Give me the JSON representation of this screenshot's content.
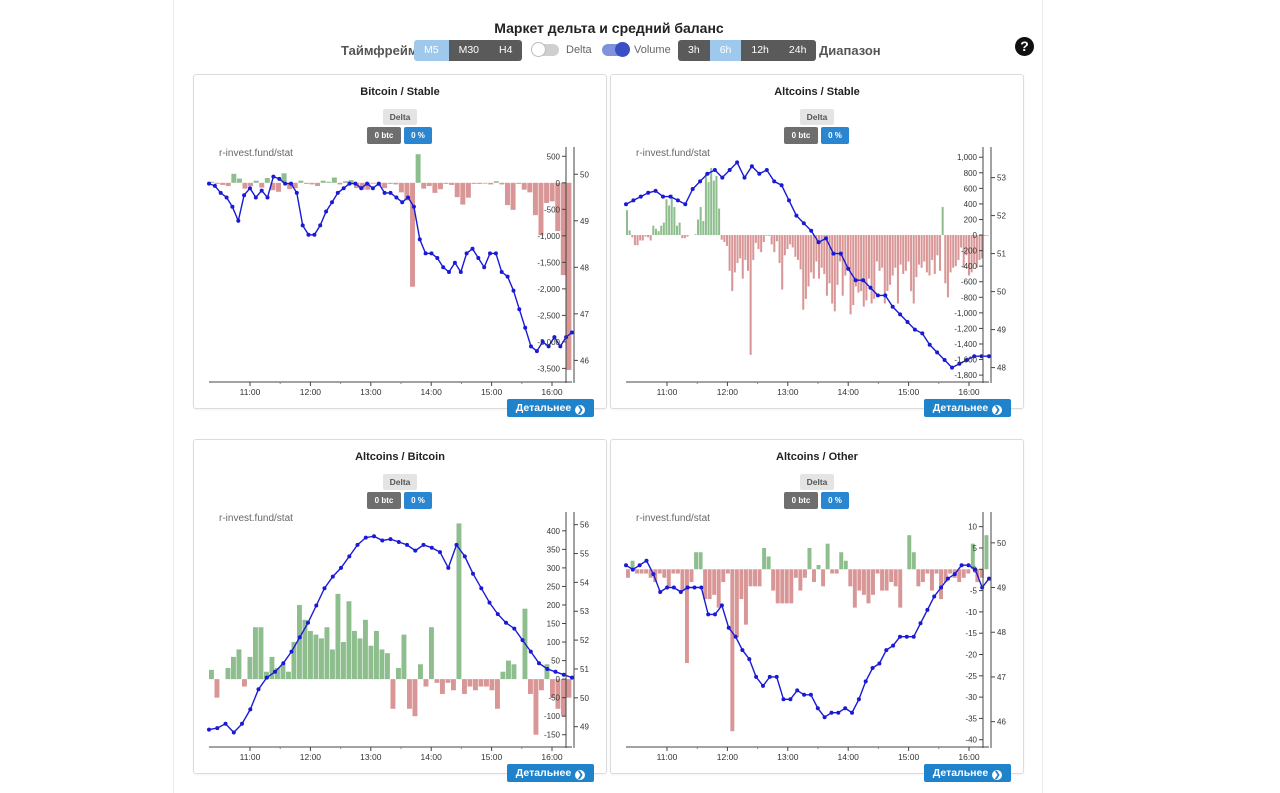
{
  "header": {
    "title": "Маркет дельта и средний баланс",
    "timeframe_label": "Таймфрейм",
    "timeframes": [
      "M5",
      "M30",
      "H4"
    ],
    "timeframe_active": "M5",
    "delta_toggle": {
      "label": "Delta",
      "on": false
    },
    "volume_toggle": {
      "label": "Volume",
      "on": true
    },
    "ranges": [
      "3h",
      "6h",
      "12h",
      "24h"
    ],
    "range_active": "6h",
    "range_label": "Диапазон",
    "help": "?"
  },
  "colors": {
    "line": "#1a1ad6",
    "pos_bar": "#8ebe8e",
    "neg_bar": "#d99696",
    "button": "#1f83cc"
  },
  "cards": [
    {
      "title": "Bitcoin / Stable",
      "delta_label": "Delta",
      "btc_badge": "0 btc",
      "pct_badge": "0 %",
      "watermark": "r-invest.fund/stat",
      "more_label": "Детальнее"
    },
    {
      "title": "Altcoins / Stable",
      "delta_label": "Delta",
      "btc_badge": "0 btc",
      "pct_badge": "0 %",
      "watermark": "r-invest.fund/stat",
      "more_label": "Детальнее"
    },
    {
      "title": "Altcoins / Bitcoin",
      "delta_label": "Delta",
      "btc_badge": "0 btc",
      "pct_badge": "0 %",
      "watermark": "r-invest.fund/stat",
      "more_label": "Детальнее"
    },
    {
      "title": "Altcoins / Other",
      "delta_label": "Delta",
      "btc_badge": "0 btc",
      "pct_badge": "0 %",
      "watermark": "r-invest.fund/stat",
      "more_label": "Детальнее"
    }
  ],
  "chart_data": [
    {
      "type": "bar+line",
      "title": "Bitcoin / Stable",
      "x_ticks": [
        "11:00",
        "12:00",
        "13:00",
        "14:00",
        "15:00",
        "16:00"
      ],
      "y_left": {
        "ticks": [
          500,
          0,
          -500,
          -1000,
          -1500,
          -2000,
          -2500,
          -3000,
          -3500
        ],
        "tick_labels": [
          "500",
          "0",
          "-500",
          "-1,000",
          "-1,500",
          "-2,000",
          "-2,500",
          "-3,000",
          "-3,500"
        ],
        "range": [
          -3700,
          600
        ]
      },
      "y_right": {
        "ticks": [
          50,
          49,
          48,
          47,
          46
        ],
        "range": [
          45.6,
          50.5
        ]
      },
      "bars": [
        20,
        -20,
        -40,
        -60,
        170,
        80,
        -110,
        -60,
        40,
        -90,
        90,
        -140,
        -170,
        180,
        -120,
        -100,
        40,
        -20,
        -30,
        -60,
        40,
        20,
        100,
        -30,
        30,
        50,
        -100,
        -130,
        -130,
        -10,
        -60,
        -100,
        -20,
        -30,
        -180,
        -330,
        -1960,
        540,
        -110,
        -60,
        -190,
        -120,
        -20,
        -40,
        -270,
        -410,
        -280,
        -20,
        -20,
        -10,
        -30,
        30,
        -30,
        -420,
        -510,
        -20,
        -130,
        -180,
        -610,
        -990,
        -380,
        -350,
        -910,
        -1740,
        -3530
      ],
      "line": [
        49.8,
        49.75,
        49.6,
        49.5,
        49.3,
        49.0,
        49.55,
        49.7,
        49.5,
        49.65,
        49.5,
        49.95,
        49.9,
        49.8,
        49.8,
        49.6,
        48.9,
        48.7,
        48.7,
        48.9,
        49.2,
        49.4,
        49.6,
        49.7,
        49.8,
        49.8,
        49.7,
        49.8,
        49.7,
        49.8,
        49.6,
        49.6,
        49.5,
        49.4,
        49.5,
        49.3,
        48.6,
        48.3,
        48.3,
        48.2,
        48.0,
        47.9,
        48.1,
        47.9,
        48.3,
        48.4,
        48.2,
        48.0,
        48.3,
        48.3,
        47.9,
        47.8,
        47.5,
        47.1,
        46.7,
        46.3,
        46.2,
        46.4,
        46.3,
        46.5,
        46.3,
        46.5,
        46.6
      ]
    },
    {
      "type": "bar+line",
      "title": "Altcoins / Stable",
      "x_ticks": [
        "11:00",
        "12:00",
        "13:00",
        "14:00",
        "15:00",
        "16:00"
      ],
      "y_left": {
        "ticks": [
          1000,
          800,
          600,
          400,
          200,
          0,
          -200,
          -400,
          -600,
          -800,
          -1000,
          -1200,
          -1400,
          -1600,
          -1800
        ],
        "tick_labels": [
          "1,000",
          "800",
          "600",
          "400",
          "200",
          "0",
          "-200",
          "-400",
          "-600",
          "-800",
          "-1,000",
          "-1,200",
          "-1,400",
          "-1,600",
          "-1,800"
        ],
        "range": [
          -1850,
          1080
        ]
      },
      "y_right": {
        "ticks": [
          53,
          52,
          51,
          50,
          49,
          48
        ],
        "range": [
          47.7,
          53.7
        ]
      },
      "bars": [
        320,
        60,
        -30,
        -130,
        -130,
        -70,
        -70,
        -20,
        -30,
        -70,
        120,
        80,
        50,
        120,
        160,
        460,
        380,
        520,
        360,
        120,
        160,
        -40,
        -40,
        -20,
        0,
        0,
        10,
        200,
        360,
        180,
        800,
        680,
        860,
        700,
        760,
        340,
        -60,
        -90,
        -140,
        -460,
        -720,
        -480,
        -360,
        -300,
        -560,
        -320,
        -460,
        -1540,
        -320,
        -100,
        -180,
        -220,
        -90,
        -10,
        -10,
        -120,
        -220,
        -80,
        -360,
        -700,
        -260,
        -180,
        -120,
        -160,
        -280,
        -320,
        -440,
        -960,
        -820,
        -660,
        -480,
        -560,
        -340,
        -560,
        -420,
        -500,
        -780,
        -620,
        -880,
        -980,
        -640,
        -340,
        -780,
        -520,
        -440,
        -1020,
        -900,
        -660,
        -740,
        -720,
        -920,
        -840,
        -560,
        -880,
        -820,
        -340,
        -460,
        -420,
        -880,
        -720,
        -640,
        -520,
        -420,
        -880,
        -380,
        -500,
        -460,
        -340,
        -720,
        -880,
        -540,
        -380,
        -420,
        -340,
        -480,
        -520,
        -320,
        -500,
        -260,
        -460,
        360,
        -620,
        -800,
        -480,
        -420,
        -400,
        -320,
        -160,
        -420,
        -260,
        -520,
        -480,
        -360,
        -420,
        -320,
        -300,
        -1,
        -1
      ],
      "line": [
        52.3,
        52.4,
        52.5,
        52.6,
        52.65,
        52.5,
        52.5,
        52.4,
        52.3,
        52.7,
        52.9,
        53.1,
        53.2,
        53.0,
        53.2,
        53.4,
        53.0,
        53.3,
        53.1,
        53.2,
        52.9,
        52.8,
        52.4,
        52.0,
        51.8,
        51.6,
        51.3,
        51.4,
        51.0,
        51.0,
        50.6,
        50.3,
        50.3,
        50.1,
        49.9,
        49.9,
        49.6,
        49.4,
        49.2,
        49.0,
        48.9,
        48.6,
        48.4,
        48.2,
        48.0,
        48.1,
        48.2,
        48.3,
        48.3,
        48.3
      ]
    },
    {
      "type": "bar+line",
      "title": "Altcoins / Bitcoin",
      "x_ticks": [
        "11:00",
        "12:00",
        "13:00",
        "14:00",
        "15:00",
        "16:00"
      ],
      "y_left": {
        "ticks": [
          400,
          350,
          300,
          250,
          200,
          150,
          100,
          50,
          0,
          -50,
          -100,
          -150
        ],
        "tick_labels": [
          "400",
          "350",
          "300",
          "250",
          "200",
          "150",
          "100",
          "50",
          "0",
          "-50",
          "-100",
          "-150"
        ],
        "range": [
          -175,
          440
        ]
      },
      "y_right": {
        "ticks": [
          56,
          55,
          54,
          53,
          52,
          51,
          50,
          49
        ],
        "range": [
          48.4,
          56.3
        ]
      },
      "bars": [
        25,
        -50,
        0,
        30,
        60,
        80,
        -20,
        60,
        140,
        140,
        20,
        60,
        30,
        40,
        20,
        100,
        200,
        160,
        130,
        120,
        110,
        140,
        80,
        230,
        100,
        210,
        130,
        110,
        160,
        90,
        130,
        80,
        70,
        -80,
        30,
        120,
        -80,
        -100,
        40,
        -20,
        140,
        -10,
        -40,
        -10,
        -30,
        420,
        -40,
        -20,
        -30,
        -20,
        -20,
        -30,
        -80,
        20,
        50,
        40,
        0,
        190,
        -40,
        -150,
        -30,
        40,
        -50,
        -80,
        -100,
        -50
      ],
      "line": [
        48.9,
        48.95,
        49.1,
        48.8,
        49.1,
        49.6,
        50.3,
        50.7,
        50.9,
        51.2,
        51.6,
        52.1,
        52.6,
        53.2,
        53.8,
        54.2,
        54.5,
        54.9,
        55.3,
        55.55,
        55.6,
        55.45,
        55.5,
        55.4,
        55.3,
        55.1,
        55.3,
        55.2,
        55.05,
        54.5,
        55.3,
        54.9,
        54.3,
        53.8,
        53.3,
        52.9,
        52.6,
        52.4,
        52.0,
        51.6,
        51.2,
        51.0,
        50.9,
        50.8,
        50.7
      ]
    },
    {
      "type": "bar+line",
      "title": "Altcoins / Other",
      "x_ticks": [
        "11:00",
        "12:00",
        "13:00",
        "14:00",
        "15:00",
        "16:00"
      ],
      "y_left": {
        "ticks": [
          10,
          5,
          0,
          -5,
          -10,
          -15,
          -20,
          -25,
          -30,
          -35,
          -40
        ],
        "tick_labels": [
          "10",
          "5",
          "0",
          "-5",
          "-10",
          "-15",
          "-20",
          "-25",
          "-30",
          "-35",
          "-40"
        ],
        "range": [
          -41,
          12.5
        ]
      },
      "y_right": {
        "ticks": [
          50,
          49,
          48,
          47,
          46
        ],
        "range": [
          45.5,
          50.6
        ]
      },
      "bars": [
        -2,
        2,
        -1,
        -1,
        -1,
        -2,
        -3,
        -1,
        -2,
        -4,
        -1,
        -1,
        -5,
        -22,
        -3,
        4,
        4,
        -7,
        -7,
        -6,
        -9,
        -3,
        -1,
        -38,
        -16,
        -7,
        -13,
        -4,
        -4,
        -4,
        5,
        3,
        -5,
        -8,
        -8,
        -8,
        -8,
        -2,
        -5,
        -2,
        5,
        -3,
        1,
        -4,
        6,
        -1,
        -1,
        4,
        2,
        -4,
        -9,
        -5,
        -6,
        -8,
        -6,
        -1,
        -5,
        -5,
        -3,
        -4,
        -9,
        0,
        8,
        4,
        -4,
        -3,
        -1,
        -5,
        -1,
        -7,
        -3,
        -1,
        -2,
        -3,
        -2,
        -1,
        6,
        -3,
        -2,
        8
      ],
      "line": [
        49.5,
        49.4,
        49.5,
        49.6,
        49.3,
        48.9,
        49.0,
        49.0,
        48.9,
        49.0,
        49.0,
        49.0,
        48.4,
        48.4,
        48.6,
        48.1,
        47.9,
        47.6,
        47.4,
        47.0,
        46.8,
        47.0,
        47.0,
        46.5,
        46.5,
        46.7,
        46.6,
        46.6,
        46.3,
        46.1,
        46.2,
        46.2,
        46.3,
        46.2,
        46.5,
        46.9,
        47.2,
        47.3,
        47.6,
        47.7,
        47.9,
        47.9,
        47.9,
        48.2,
        48.5,
        48.8,
        49.0,
        49.2,
        49.3,
        49.5,
        49.5,
        49.4,
        49.0,
        49.2
      ]
    }
  ]
}
